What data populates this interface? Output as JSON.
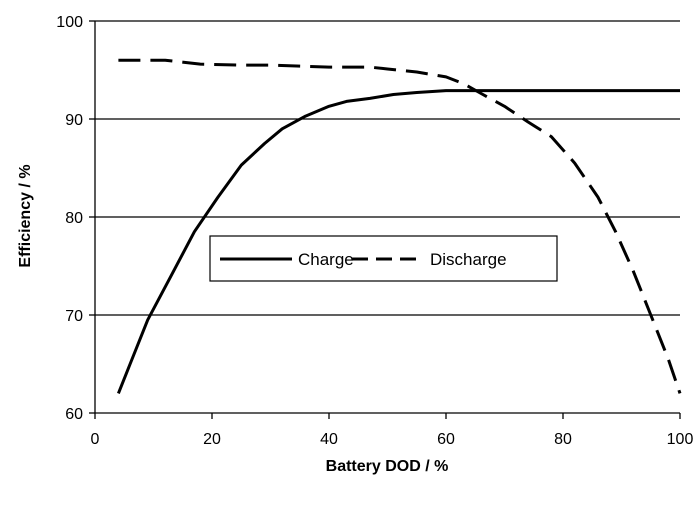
{
  "chart_data": {
    "type": "line",
    "title": "",
    "xlabel": "Battery DOD / %",
    "ylabel": "Efficiency / %",
    "xlim": [
      0,
      100
    ],
    "ylim": [
      60,
      100
    ],
    "xticks": [
      "0",
      "20",
      "40",
      "60",
      "80",
      "100"
    ],
    "yticks": [
      "60",
      "70",
      "80",
      "90",
      "100"
    ],
    "grid": "horizontal",
    "legend_position": "center",
    "series": [
      {
        "name": "Charge",
        "style": "solid",
        "color": "#000000",
        "x": [
          4,
          6,
          9,
          13,
          17,
          21,
          25,
          29,
          32,
          36,
          40,
          43,
          47,
          51,
          55,
          60,
          65,
          70,
          80,
          90,
          100
        ],
        "y": [
          62,
          65,
          69.5,
          74,
          78.5,
          82,
          85.3,
          87.5,
          89,
          90.3,
          91.3,
          91.8,
          92.1,
          92.5,
          92.7,
          92.9,
          92.9,
          92.9,
          92.9,
          92.9,
          92.9
        ]
      },
      {
        "name": "Discharge",
        "style": "dashed",
        "color": "#000000",
        "x": [
          4,
          8,
          12,
          18,
          25,
          30,
          40,
          47,
          50,
          55,
          60,
          63,
          66,
          70,
          74,
          78,
          82,
          86,
          89,
          92,
          95,
          98,
          100
        ],
        "y": [
          96,
          96,
          96,
          95.6,
          95.5,
          95.5,
          95.3,
          95.3,
          95.1,
          94.8,
          94.3,
          93.6,
          92.6,
          91.3,
          89.7,
          88.2,
          85.5,
          82,
          78.5,
          74.5,
          70,
          65.5,
          62
        ]
      }
    ]
  }
}
